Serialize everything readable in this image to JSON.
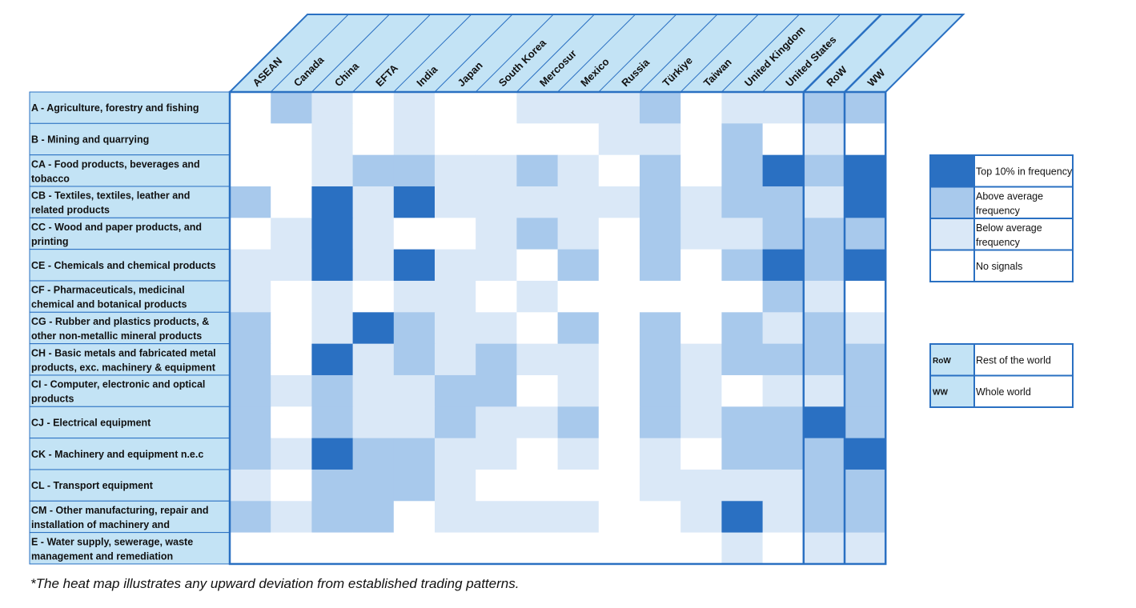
{
  "chart_data": {
    "type": "heatmap",
    "title": "",
    "columns": [
      "ASEAN",
      "Canada",
      "China",
      "EFTA",
      "India",
      "Japan",
      "South Korea",
      "Mercosur",
      "Mexico",
      "Russia",
      "Türkiye",
      "Taiwan",
      "United Kingdom",
      "United States",
      "RoW",
      "WW"
    ],
    "rows": [
      "A - Agriculture, forestry and fishing",
      "B - Mining and quarrying",
      "CA - Food products, beverages and tobacco",
      "CB - Textiles, textiles, leather and related products",
      "CC - Wood and paper products, and printing",
      "CE - Chemicals and chemical products",
      "CF - Pharmaceuticals, medicinal chemical and botanical products",
      "CG - Rubber and plastics products, & other non-metallic mineral products",
      "CH - Basic metals and fabricated metal products, exc. machinery & equipment",
      "CI - Computer, electronic and optical products",
      "CJ - Electrical equipment",
      "CK - Machinery and equipment n.e.c",
      "CL - Transport equipment",
      "CM - Other manufacturing, repair and installation of machinery and equipment",
      "E - Water supply, sewerage, waste management and remediation"
    ],
    "levels": [
      "No signals",
      "Below average frequency",
      "Above average frequency",
      "Top 10% in frequency"
    ],
    "level_colors": [
      "#ffffff",
      "#dae8f7",
      "#a8c9ec",
      "#2a70c2"
    ],
    "values": [
      [
        0,
        2,
        1,
        0,
        1,
        0,
        0,
        1,
        1,
        1,
        2,
        0,
        1,
        1,
        2,
        2
      ],
      [
        0,
        0,
        1,
        0,
        1,
        0,
        0,
        0,
        0,
        1,
        1,
        0,
        2,
        0,
        1,
        0
      ],
      [
        0,
        0,
        1,
        2,
        2,
        1,
        1,
        2,
        1,
        0,
        2,
        0,
        2,
        3,
        2,
        3
      ],
      [
        2,
        0,
        3,
        1,
        3,
        1,
        1,
        1,
        1,
        1,
        2,
        1,
        2,
        2,
        1,
        3
      ],
      [
        0,
        1,
        3,
        1,
        0,
        0,
        1,
        2,
        1,
        0,
        2,
        1,
        1,
        2,
        2,
        2
      ],
      [
        1,
        1,
        3,
        1,
        3,
        1,
        1,
        0,
        2,
        0,
        2,
        0,
        2,
        3,
        2,
        3
      ],
      [
        1,
        0,
        1,
        0,
        1,
        1,
        0,
        1,
        0,
        0,
        0,
        0,
        0,
        2,
        1,
        0
      ],
      [
        2,
        0,
        1,
        3,
        2,
        1,
        1,
        0,
        2,
        0,
        2,
        0,
        2,
        1,
        2,
        1
      ],
      [
        2,
        0,
        3,
        1,
        2,
        1,
        2,
        1,
        1,
        0,
        2,
        1,
        2,
        2,
        2,
        2
      ],
      [
        2,
        1,
        2,
        1,
        1,
        2,
        2,
        0,
        1,
        0,
        2,
        1,
        0,
        1,
        1,
        2
      ],
      [
        2,
        0,
        2,
        1,
        1,
        2,
        1,
        1,
        2,
        0,
        2,
        1,
        2,
        2,
        3,
        2
      ],
      [
        2,
        1,
        3,
        2,
        2,
        1,
        1,
        0,
        1,
        0,
        1,
        0,
        2,
        2,
        2,
        3
      ],
      [
        1,
        0,
        2,
        2,
        2,
        1,
        0,
        0,
        0,
        0,
        1,
        1,
        1,
        1,
        2,
        2
      ],
      [
        2,
        1,
        2,
        2,
        0,
        1,
        1,
        1,
        1,
        0,
        0,
        1,
        3,
        1,
        2,
        2
      ],
      [
        0,
        0,
        0,
        0,
        0,
        0,
        0,
        0,
        0,
        0,
        0,
        0,
        1,
        0,
        1,
        1
      ]
    ],
    "legend": {
      "placement": "right",
      "items": [
        {
          "level": 3,
          "label": "Top 10% in frequency"
        },
        {
          "level": 2,
          "label": "Above average frequency"
        },
        {
          "level": 1,
          "label": "Below average frequency"
        },
        {
          "level": 0,
          "label": "No signals"
        }
      ],
      "abbreviations": [
        {
          "abbr": "RoW",
          "label": "Rest of the world"
        },
        {
          "abbr": "WW",
          "label": "Whole world"
        }
      ]
    },
    "footnote": "*The heat map illustrates any upward deviation from established trading patterns."
  },
  "colors": {
    "grid_border": "#2a70c2",
    "label_fill": "#c3e3f5",
    "header_fill": "#c3e3f5",
    "text": "#111111"
  }
}
